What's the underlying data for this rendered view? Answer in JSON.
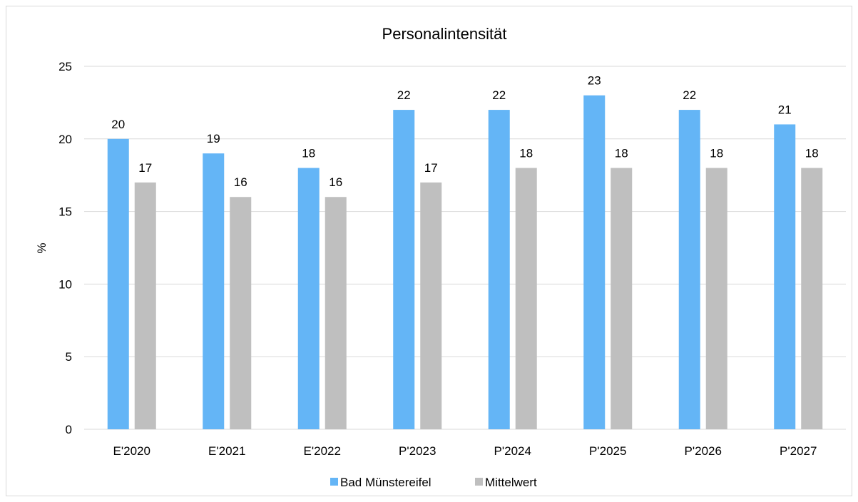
{
  "chart_data": {
    "type": "bar",
    "title": "Personalintensität",
    "ylabel": "%",
    "xlabel": "",
    "categories": [
      "E'2020",
      "E'2021",
      "E'2022",
      "P'2023",
      "P'2024",
      "P'2025",
      "P'2026",
      "P'2027"
    ],
    "series": [
      {
        "name": "Bad Münstereifel",
        "color": "#64b5f6",
        "values": [
          20,
          19,
          18,
          22,
          22,
          23,
          22,
          21
        ]
      },
      {
        "name": "Mittelwert",
        "color": "#bfbfbf",
        "values": [
          17,
          16,
          16,
          17,
          18,
          18,
          18,
          18
        ]
      }
    ],
    "ylim": [
      0,
      25
    ],
    "yticks": [
      0,
      5,
      10,
      15,
      20,
      25
    ],
    "grid": true,
    "legend_position": "bottom",
    "data_labels": true
  }
}
